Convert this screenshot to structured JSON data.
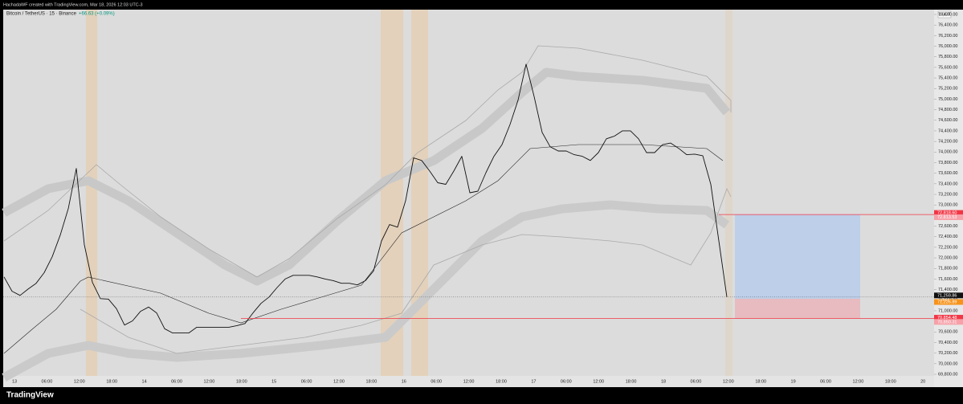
{
  "chart_data": {
    "type": "line",
    "header": "HachadaWF created with TradingView.com, Mar 18, 2026 12:03 UTC-3",
    "symbol": "Bitcoin / TetherUS · 15 · Binance",
    "change": "+66.63 (+0.09%)",
    "change_color": "#089981",
    "currency": "USDT",
    "footer": "TradingView",
    "color": "#111111",
    "values": [
      71640,
      71370,
      71290,
      71410,
      71520,
      71720,
      72020,
      72430,
      72930,
      73690,
      72250,
      71540,
      71230,
      71220,
      71040,
      70730,
      70810,
      70990,
      71070,
      70960,
      70660,
      70580,
      70580,
      70580,
      70690,
      70690,
      70690,
      70690,
      70690,
      70720,
      70760,
      70960,
      71140,
      71260,
      71440,
      71600,
      71670,
      71670,
      71670,
      71640,
      71600,
      71570,
      71520,
      71520,
      71490,
      71570,
      71750,
      72320,
      72630,
      72580,
      73080,
      73890,
      73840,
      73640,
      73420,
      73390,
      73640,
      73920,
      73230,
      73260,
      73610,
      73920,
      74140,
      74520,
      74980,
      75660,
      75050,
      74370,
      74100,
      74020,
      74020,
      73950,
      73920,
      73840,
      73990,
      74250,
      74300,
      74400,
      74400,
      74250,
      73990,
      73990,
      74140,
      74170,
      74070,
      73950,
      73960,
      73930,
      73390,
      72320,
      71260
    ],
    "ylim": [
      69800,
      76600
    ],
    "yticks": [
      {
        "value": 76600,
        "label": "76,600.00"
      },
      {
        "value": 76400,
        "label": "76,400.00"
      },
      {
        "value": 76200,
        "label": "76,200.00"
      },
      {
        "value": 76000,
        "label": "76,000.00"
      },
      {
        "value": 75800,
        "label": "75,800.00"
      },
      {
        "value": 75600,
        "label": "75,600.00"
      },
      {
        "value": 75400,
        "label": "75,400.00"
      },
      {
        "value": 75200,
        "label": "75,200.00"
      },
      {
        "value": 75000,
        "label": "75,000.00"
      },
      {
        "value": 74800,
        "label": "74,800.00"
      },
      {
        "value": 74600,
        "label": "74,600.00"
      },
      {
        "value": 74400,
        "label": "74,400.00"
      },
      {
        "value": 74200,
        "label": "74,200.00"
      },
      {
        "value": 74000,
        "label": "74,000.00"
      },
      {
        "value": 73800,
        "label": "73,800.00"
      },
      {
        "value": 73600,
        "label": "73,600.00"
      },
      {
        "value": 73400,
        "label": "73,400.00"
      },
      {
        "value": 73200,
        "label": "73,200.00"
      },
      {
        "value": 73000,
        "label": "73,000.00"
      },
      {
        "value": 72800,
        "label": "72,800.00"
      },
      {
        "value": 72600,
        "label": "72,600.00"
      },
      {
        "value": 72400,
        "label": "72,400.00"
      },
      {
        "value": 72200,
        "label": "72,200.00"
      },
      {
        "value": 72000,
        "label": "72,000.00"
      },
      {
        "value": 71800,
        "label": "71,800.00"
      },
      {
        "value": 71600,
        "label": "71,600.00"
      },
      {
        "value": 71400,
        "label": "71,400.00"
      },
      {
        "value": 71200,
        "label": "71,200.00"
      },
      {
        "value": 71000,
        "label": "71,000.00"
      },
      {
        "value": 70800,
        "label": "70,800.00"
      },
      {
        "value": 70600,
        "label": "70,600.00"
      },
      {
        "value": 70400,
        "label": "70,400.00"
      },
      {
        "value": 70200,
        "label": "70,200.00"
      },
      {
        "value": 70000,
        "label": "70,000.00"
      },
      {
        "value": 69800,
        "label": "69,800.00"
      }
    ],
    "time_labels": [
      "13",
      "06:00",
      "12:00",
      "18:00",
      "14",
      "06:00",
      "12:00",
      "18:00",
      "15",
      "06:00",
      "12:00",
      "18:00",
      "16",
      "06:00",
      "12:00",
      "18:00",
      "17",
      "06:00",
      "12:00",
      "18:00",
      "18",
      "06:00",
      "12:00",
      "18:00",
      "19",
      "06:00",
      "12:00",
      "18:00",
      "20"
    ],
    "position": {
      "target": {
        "value": 72818.6,
        "label": "72,818.60",
        "color": "#f23645"
      },
      "entry": {
        "value": 71226.89,
        "label": "71,226.89",
        "color": "#f7931a"
      },
      "stop": {
        "value": 70854.48,
        "label": "70,854.48",
        "color": "#f23645"
      }
    },
    "price_tags": [
      {
        "value": 72813.53,
        "label": "72,813.53",
        "color": "#f7a0a8"
      },
      {
        "value": 71259.86,
        "label": "71,259.86",
        "color": "#111111"
      },
      {
        "value": 70850.31,
        "label": "70,850.31",
        "color": "#f7a0a8"
      }
    ],
    "countdown": "11:57"
  }
}
